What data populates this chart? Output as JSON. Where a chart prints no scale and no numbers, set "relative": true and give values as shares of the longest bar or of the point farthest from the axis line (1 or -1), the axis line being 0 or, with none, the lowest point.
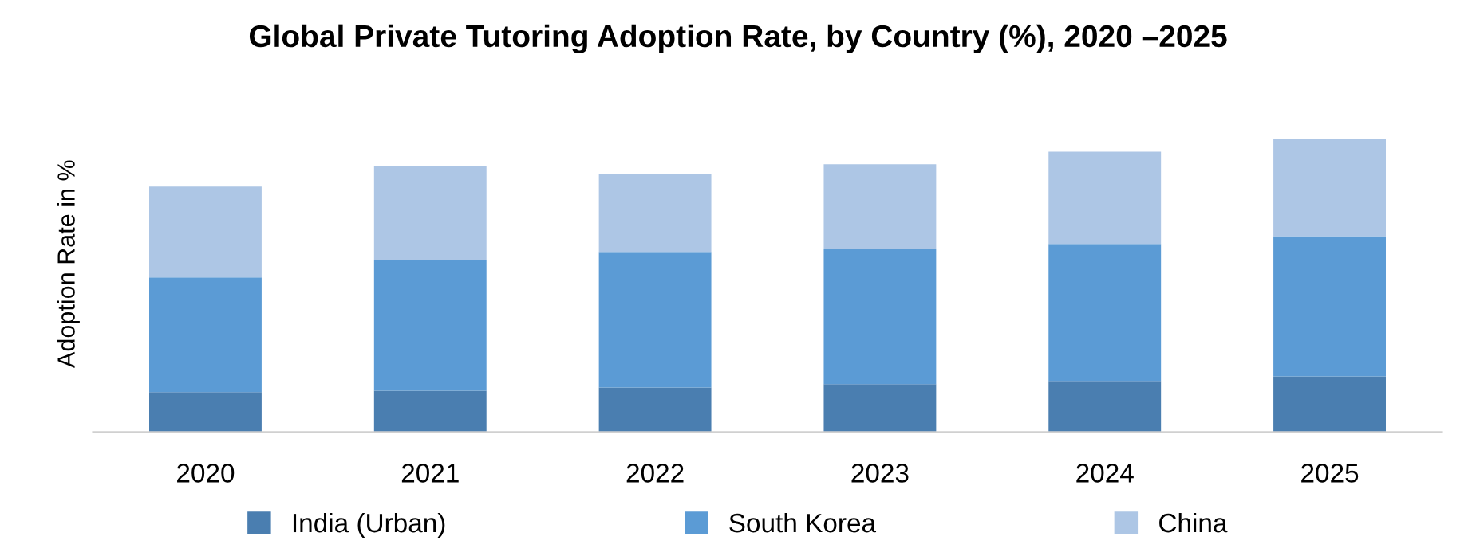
{
  "chart_data": {
    "type": "bar",
    "title": "Global Private Tutoring Adoption Rate, by Country (%), 2020 –2025",
    "ylabel": "Adoption Rate in %",
    "categories": [
      "2020",
      "2021",
      "2022",
      "2023",
      "2024",
      "2025"
    ],
    "stacked": true,
    "relative": true,
    "legend": "bottom",
    "grid": false,
    "series": [
      {
        "name": "India (Urban)",
        "color": "#4a7eb0",
        "values": [
          0.136,
          0.141,
          0.152,
          0.163,
          0.174,
          0.19
        ]
      },
      {
        "name": "South Korea",
        "color": "#5b9bd5",
        "values": [
          0.391,
          0.446,
          0.462,
          0.462,
          0.467,
          0.478
        ]
      },
      {
        "name": "China",
        "color": "#adc6e5",
        "values": [
          0.31,
          0.321,
          0.266,
          0.288,
          0.315,
          0.332
        ]
      }
    ]
  }
}
